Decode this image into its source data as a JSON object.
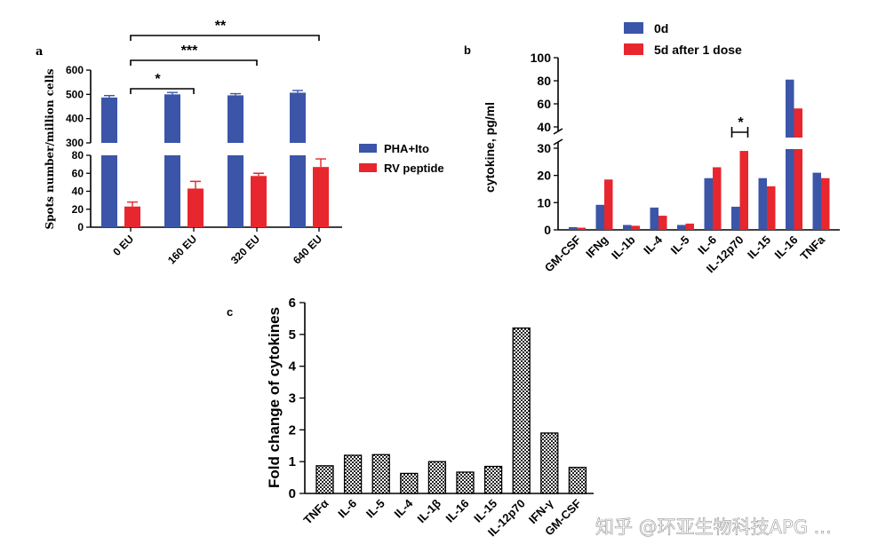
{
  "colors": {
    "blue": "#3b55a8",
    "red": "#e8262e",
    "hatch_fill": "#ffffff",
    "hatch_ink": "#222222"
  },
  "watermark": "知乎 @环亚生物科技APG ...",
  "chart_data": [
    {
      "panel": "a",
      "type": "bar",
      "ylabel": "Spots number/million cells",
      "categories": [
        "0 EU",
        "160 EU",
        "320 EU",
        "640 EU"
      ],
      "series": [
        {
          "name": "PHA+Ito",
          "color": "blue",
          "values": [
            487,
            500,
            496,
            507
          ],
          "errors": [
            8,
            8,
            7,
            9
          ]
        },
        {
          "name": "RV peptide",
          "color": "red",
          "values": [
            23,
            43,
            57,
            67
          ],
          "errors": [
            5,
            8,
            3,
            9
          ]
        }
      ],
      "broken_axis": {
        "lower": [
          0,
          80
        ],
        "upper": [
          300,
          600
        ]
      },
      "yticks_lower": [
        "0",
        "20",
        "40",
        "60",
        "80"
      ],
      "yticks_upper": [
        "300",
        "400",
        "500",
        "600"
      ],
      "legend_position": "right",
      "significance": [
        {
          "from": "0 EU",
          "to": "160 EU",
          "label": "*"
        },
        {
          "from": "0 EU",
          "to": "320 EU",
          "label": "***"
        },
        {
          "from": "0 EU",
          "to": "640 EU",
          "label": "**"
        }
      ]
    },
    {
      "panel": "b",
      "type": "bar",
      "ylabel": "cytokine, pg/ml",
      "categories": [
        "GM-CSF",
        "IFNg",
        "IL-1b",
        "IL-4",
        "IL-5",
        "IL-6",
        "IL-12p70",
        "IL-15",
        "IL-16",
        "TNFa"
      ],
      "series": [
        {
          "name": "0d",
          "color": "blue",
          "values": [
            1.0,
            9.2,
            1.8,
            8.2,
            1.8,
            19.0,
            8.5,
            19.0,
            81.0,
            21.0
          ]
        },
        {
          "name": "5d after 1 dose",
          "color": "red",
          "values": [
            0.8,
            18.5,
            1.5,
            5.2,
            2.3,
            23.0,
            29.0,
            16.0,
            56.0,
            19.0
          ]
        }
      ],
      "broken_axis": {
        "lower": [
          0,
          30
        ],
        "upper": [
          30,
          100
        ]
      },
      "yticks_lower": [
        "0",
        "10",
        "20",
        "30"
      ],
      "yticks_upper": [
        "40",
        "60",
        "80",
        "100"
      ],
      "legend_position": "top",
      "significance": [
        {
          "category": "IL-12p70",
          "label": "*"
        }
      ]
    },
    {
      "panel": "c",
      "type": "bar",
      "ylabel": "Fold change of cytokines",
      "categories": [
        "TNFα",
        "IL-6",
        "IL-5",
        "IL-4",
        "IL-1β",
        "IL-16",
        "IL-15",
        "IL-12p70",
        "IFN-γ",
        "GM-CSF"
      ],
      "values": [
        0.87,
        1.2,
        1.22,
        0.63,
        1.0,
        0.67,
        0.85,
        5.2,
        1.9,
        0.82
      ],
      "ylim": [
        0,
        6
      ],
      "yticks": [
        "0",
        "1",
        "2",
        "3",
        "4",
        "5",
        "6"
      ],
      "pattern": "checkered"
    }
  ]
}
